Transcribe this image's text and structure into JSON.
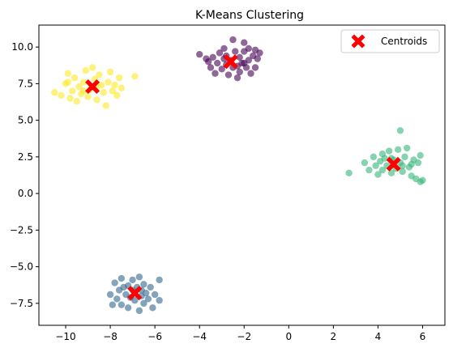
{
  "chart_data": {
    "type": "scatter",
    "title": "K-Means Clustering",
    "xlabel": "",
    "ylabel": "",
    "xlim": [
      -11.2,
      7.0
    ],
    "ylim": [
      -9.0,
      11.5
    ],
    "x_ticks": [
      -10,
      -8,
      -6,
      -4,
      -2,
      0,
      2,
      4,
      6
    ],
    "y_ticks": [
      -7.5,
      -5.0,
      -2.5,
      0.0,
      2.5,
      5.0,
      7.5,
      10.0
    ],
    "x_tick_labels": [
      "−10",
      "−8",
      "−6",
      "−4",
      "−2",
      "0",
      "2",
      "4",
      "6"
    ],
    "y_tick_labels": [
      "−7.5",
      "−5.0",
      "−2.5",
      "0.0",
      "2.5",
      "5.0",
      "7.5",
      "10.0"
    ],
    "grid": false,
    "legend_position": "top-right",
    "point_alpha": 0.6,
    "series": [
      {
        "color": "#440154",
        "points": [
          [
            -4.0,
            9.5
          ],
          [
            -3.6,
            9.0
          ],
          [
            -3.5,
            8.6
          ],
          [
            -3.4,
            9.3
          ],
          [
            -3.3,
            8.2
          ],
          [
            -3.2,
            8.9
          ],
          [
            -3.1,
            9.6
          ],
          [
            -3.0,
            8.5
          ],
          [
            -2.9,
            9.9
          ],
          [
            -2.8,
            8.8
          ],
          [
            -2.8,
            9.4
          ],
          [
            -2.7,
            8.1
          ],
          [
            -2.6,
            9.1
          ],
          [
            -2.5,
            10.5
          ],
          [
            -2.5,
            8.6
          ],
          [
            -2.4,
            9.7
          ],
          [
            -2.3,
            7.9
          ],
          [
            -2.2,
            8.3
          ],
          [
            -2.2,
            9.3
          ],
          [
            -2.1,
            8.9
          ],
          [
            -2.0,
            10.3
          ],
          [
            -2.0,
            9.7
          ],
          [
            -1.9,
            8.6
          ],
          [
            -1.8,
            9.1
          ],
          [
            -1.8,
            9.9
          ],
          [
            -1.7,
            8.2
          ],
          [
            -1.6,
            9.4
          ],
          [
            -1.5,
            9.8
          ],
          [
            -1.5,
            8.6
          ],
          [
            -1.4,
            9.2
          ],
          [
            -1.3,
            9.6
          ],
          [
            -3.7,
            9.2
          ],
          [
            -2.3,
            8.7
          ],
          [
            -2.9,
            9.2
          ],
          [
            -2.0,
            8.9
          ]
        ]
      },
      {
        "color": "#31688e",
        "points": [
          [
            -8.0,
            -6.9
          ],
          [
            -7.8,
            -6.1
          ],
          [
            -7.7,
            -7.2
          ],
          [
            -7.6,
            -6.6
          ],
          [
            -7.5,
            -7.6
          ],
          [
            -7.5,
            -5.8
          ],
          [
            -7.3,
            -6.9
          ],
          [
            -7.2,
            -6.3
          ],
          [
            -7.2,
            -7.8
          ],
          [
            -7.1,
            -7.1
          ],
          [
            -7.0,
            -6.6
          ],
          [
            -7.0,
            -5.9
          ],
          [
            -6.9,
            -7.3
          ],
          [
            -6.8,
            -6.4
          ],
          [
            -6.7,
            -8.0
          ],
          [
            -6.7,
            -5.7
          ],
          [
            -6.6,
            -7.0
          ],
          [
            -6.5,
            -6.2
          ],
          [
            -6.5,
            -7.5
          ],
          [
            -6.4,
            -6.8
          ],
          [
            -6.3,
            -7.2
          ],
          [
            -6.2,
            -6.4
          ],
          [
            -6.1,
            -7.8
          ],
          [
            -6.0,
            -6.9
          ],
          [
            -5.8,
            -5.9
          ],
          [
            -5.8,
            -7.3
          ],
          [
            -7.9,
            -7.6
          ],
          [
            -6.9,
            -6.8
          ],
          [
            -7.4,
            -6.4
          ],
          [
            -6.6,
            -6.6
          ]
        ]
      },
      {
        "color": "#35b779",
        "points": [
          [
            2.7,
            1.4
          ],
          [
            3.4,
            2.1
          ],
          [
            3.6,
            1.6
          ],
          [
            3.8,
            2.5
          ],
          [
            3.9,
            1.9
          ],
          [
            4.0,
            1.3
          ],
          [
            4.1,
            2.2
          ],
          [
            4.2,
            2.7
          ],
          [
            4.2,
            1.6
          ],
          [
            4.3,
            2.4
          ],
          [
            4.4,
            1.9
          ],
          [
            4.5,
            2.9
          ],
          [
            4.6,
            1.4
          ],
          [
            4.7,
            2.3
          ],
          [
            4.8,
            1.7
          ],
          [
            4.9,
            3.0
          ],
          [
            5.0,
            2.1
          ],
          [
            5.0,
            4.3
          ],
          [
            5.1,
            1.5
          ],
          [
            5.2,
            2.5
          ],
          [
            5.3,
            3.1
          ],
          [
            5.4,
            1.8
          ],
          [
            5.5,
            1.2
          ],
          [
            5.6,
            2.3
          ],
          [
            5.7,
            1.0
          ],
          [
            5.8,
            2.1
          ],
          [
            5.9,
            2.6
          ],
          [
            5.9,
            0.8
          ],
          [
            6.0,
            0.9
          ],
          [
            5.5,
            2.0
          ],
          [
            4.6,
            2.4
          ],
          [
            5.1,
            1.9
          ]
        ]
      },
      {
        "color": "#fde725",
        "points": [
          [
            -10.5,
            6.9
          ],
          [
            -10.2,
            6.7
          ],
          [
            -10.0,
            7.5
          ],
          [
            -9.9,
            8.2
          ],
          [
            -9.8,
            6.5
          ],
          [
            -9.7,
            7.0
          ],
          [
            -9.6,
            7.9
          ],
          [
            -9.5,
            6.3
          ],
          [
            -9.4,
            7.3
          ],
          [
            -9.3,
            6.8
          ],
          [
            -9.2,
            7.6
          ],
          [
            -9.1,
            8.4
          ],
          [
            -9.0,
            6.6
          ],
          [
            -8.9,
            7.1
          ],
          [
            -8.8,
            8.6
          ],
          [
            -8.7,
            7.8
          ],
          [
            -8.6,
            6.4
          ],
          [
            -8.5,
            8.1
          ],
          [
            -8.4,
            7.4
          ],
          [
            -8.3,
            6.9
          ],
          [
            -8.2,
            6.0
          ],
          [
            -8.1,
            7.6
          ],
          [
            -8.0,
            8.3
          ],
          [
            -7.9,
            7.0
          ],
          [
            -7.8,
            7.4
          ],
          [
            -7.7,
            6.7
          ],
          [
            -7.6,
            7.9
          ],
          [
            -7.5,
            7.2
          ],
          [
            -6.9,
            8.0
          ],
          [
            -9.9,
            7.6
          ],
          [
            -9.2,
            7.0
          ],
          [
            -8.6,
            7.3
          ]
        ]
      }
    ],
    "centroids": {
      "name": "Centroids",
      "color": "#ff0000",
      "marker": "X",
      "points": [
        [
          -2.6,
          9.0
        ],
        [
          -6.9,
          -6.8
        ],
        [
          4.7,
          2.0
        ],
        [
          -8.8,
          7.3
        ]
      ]
    }
  }
}
